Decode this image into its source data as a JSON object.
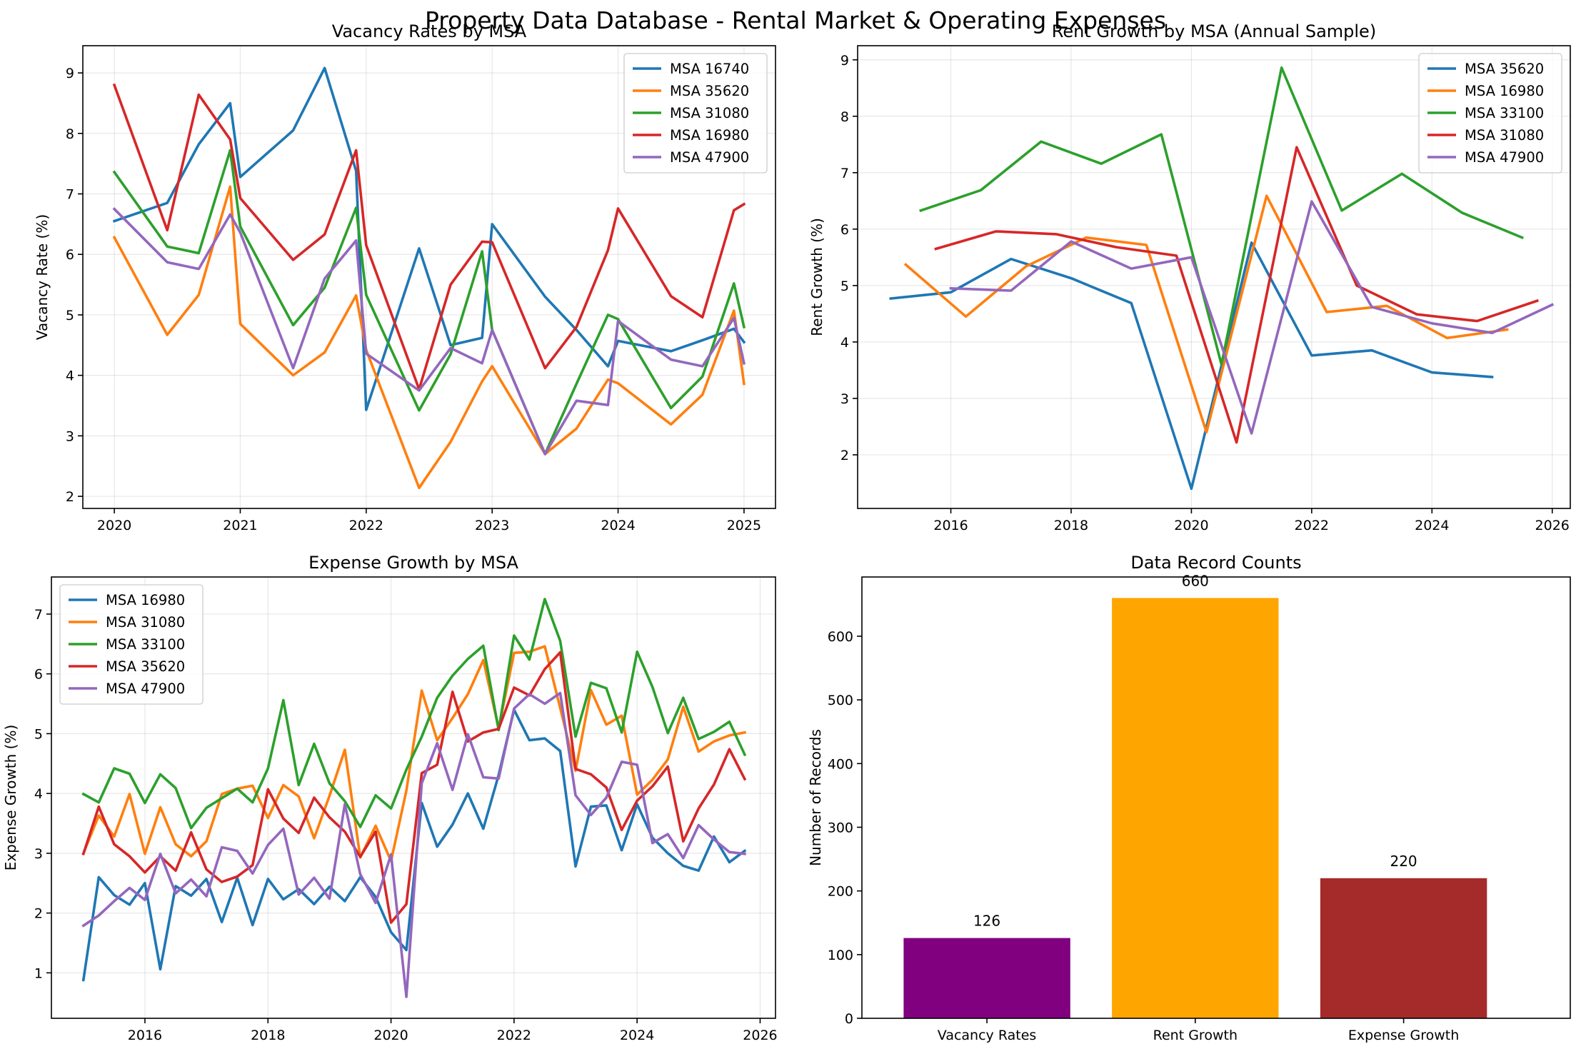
{
  "figure": {
    "title": "Property Data Database - Rental Market & Operating Expenses"
  },
  "chart_data": [
    {
      "id": "vacancy",
      "type": "line",
      "title": "Vacancy Rates by MSA",
      "xlabel": "",
      "ylabel": "Vacancy Rate (%)",
      "xlim": [
        2019.75,
        2025.25
      ],
      "ylim": [
        1.8,
        9.45
      ],
      "xticks": [
        2020,
        2021,
        2022,
        2023,
        2024,
        2025
      ],
      "yticks": [
        2,
        3,
        4,
        5,
        6,
        7,
        8,
        9
      ],
      "grid": true,
      "legend": "top-right",
      "series": [
        {
          "name": "MSA 16740",
          "color": "#1f77b4",
          "x": [
            2020.0,
            2020.42,
            2020.67,
            2020.92,
            2021.0,
            2021.42,
            2021.67,
            2021.92,
            2022.0,
            2022.42,
            2022.67,
            2022.92,
            2023.0,
            2023.42,
            2023.67,
            2023.92,
            2024.0,
            2024.42,
            2024.67,
            2024.92,
            2025.0
          ],
          "y": [
            6.55,
            6.85,
            7.82,
            8.5,
            7.28,
            8.05,
            9.08,
            7.38,
            3.43,
            6.1,
            4.5,
            4.62,
            6.5,
            5.3,
            4.75,
            4.15,
            4.57,
            4.4,
            4.58,
            4.77,
            4.55
          ]
        },
        {
          "name": "MSA 35620",
          "color": "#ff7f0e",
          "x": [
            2020.0,
            2020.42,
            2020.67,
            2020.92,
            2021.0,
            2021.42,
            2021.67,
            2021.92,
            2022.0,
            2022.42,
            2022.67,
            2022.92,
            2023.0,
            2023.42,
            2023.67,
            2023.92,
            2024.0,
            2024.42,
            2024.67,
            2024.92,
            2025.0
          ],
          "y": [
            6.28,
            4.67,
            5.33,
            7.12,
            4.85,
            4.0,
            4.38,
            5.32,
            4.42,
            2.14,
            2.9,
            3.9,
            4.15,
            2.7,
            3.12,
            3.93,
            3.87,
            3.19,
            3.68,
            5.07,
            3.86
          ]
        },
        {
          "name": "MSA 31080",
          "color": "#2ca02c",
          "x": [
            2020.0,
            2020.42,
            2020.67,
            2020.92,
            2021.0,
            2021.42,
            2021.67,
            2021.92,
            2022.0,
            2022.42,
            2022.67,
            2022.92,
            2023.0,
            2023.42,
            2023.67,
            2023.92,
            2024.0,
            2024.42,
            2024.67,
            2024.92,
            2025.0
          ],
          "y": [
            7.36,
            6.13,
            6.02,
            7.72,
            6.46,
            4.83,
            5.45,
            6.77,
            5.33,
            3.42,
            4.35,
            6.05,
            4.75,
            2.7,
            3.86,
            5.0,
            4.93,
            3.46,
            3.98,
            5.52,
            4.8
          ]
        },
        {
          "name": "MSA 16980",
          "color": "#d62728",
          "x": [
            2020.0,
            2020.42,
            2020.67,
            2020.92,
            2021.0,
            2021.42,
            2021.67,
            2021.92,
            2022.0,
            2022.42,
            2022.67,
            2022.92,
            2023.0,
            2023.42,
            2023.67,
            2023.92,
            2024.0,
            2024.42,
            2024.67,
            2024.92,
            2025.0
          ],
          "y": [
            8.8,
            6.4,
            8.64,
            7.9,
            6.93,
            5.91,
            6.33,
            7.72,
            6.15,
            3.77,
            5.5,
            6.21,
            6.2,
            4.12,
            4.8,
            6.07,
            6.76,
            5.31,
            4.96,
            6.73,
            6.83
          ]
        },
        {
          "name": "MSA 47900",
          "color": "#9467bd",
          "x": [
            2020.0,
            2020.42,
            2020.67,
            2020.92,
            2021.0,
            2021.42,
            2021.67,
            2021.92,
            2022.0,
            2022.42,
            2022.67,
            2022.92,
            2023.0,
            2023.42,
            2023.67,
            2023.92,
            2024.0,
            2024.42,
            2024.67,
            2024.92,
            2025.0
          ],
          "y": [
            6.75,
            5.87,
            5.76,
            6.66,
            6.36,
            4.12,
            5.6,
            6.23,
            4.36,
            3.75,
            4.45,
            4.2,
            4.75,
            2.7,
            3.58,
            3.51,
            4.9,
            4.26,
            4.15,
            4.95,
            4.2
          ]
        }
      ]
    },
    {
      "id": "rent",
      "type": "line",
      "title": "Rent Growth by MSA (Annual Sample)",
      "xlabel": "",
      "ylabel": "Rent Growth (%)",
      "xlim": [
        2014.45,
        2026.3
      ],
      "ylim": [
        1.05,
        9.25
      ],
      "xticks": [
        2016,
        2018,
        2020,
        2022,
        2024,
        2026
      ],
      "yticks": [
        2,
        3,
        4,
        5,
        6,
        7,
        8,
        9
      ],
      "grid": true,
      "legend": "top-right",
      "series": [
        {
          "name": "MSA 35620",
          "color": "#1f77b4",
          "x": [
            2015.0,
            2016.0,
            2017.0,
            2018.0,
            2019.0,
            2020.0,
            2021.0,
            2022.0,
            2023.0,
            2024.0,
            2025.0
          ],
          "y": [
            4.77,
            4.88,
            5.47,
            5.13,
            4.69,
            1.4,
            5.76,
            3.76,
            3.85,
            3.46,
            3.38
          ]
        },
        {
          "name": "MSA 16980",
          "color": "#ff7f0e",
          "x": [
            2015.25,
            2016.25,
            2017.25,
            2018.25,
            2019.25,
            2020.25,
            2021.25,
            2022.25,
            2023.25,
            2024.25,
            2025.25
          ],
          "y": [
            5.37,
            4.45,
            5.34,
            5.85,
            5.72,
            2.4,
            6.59,
            4.53,
            4.64,
            4.07,
            4.22
          ]
        },
        {
          "name": "MSA 33100",
          "color": "#2ca02c",
          "x": [
            2015.5,
            2016.5,
            2017.5,
            2018.5,
            2019.5,
            2020.5,
            2021.5,
            2022.5,
            2023.5,
            2024.5,
            2025.5
          ],
          "y": [
            6.33,
            6.69,
            7.55,
            7.16,
            7.68,
            3.6,
            8.86,
            6.33,
            6.98,
            6.29,
            5.85
          ]
        },
        {
          "name": "MSA 31080",
          "color": "#d62728",
          "x": [
            2015.75,
            2016.75,
            2017.75,
            2018.75,
            2019.75,
            2020.75,
            2021.75,
            2022.75,
            2023.75,
            2024.75,
            2025.75
          ],
          "y": [
            5.65,
            5.96,
            5.91,
            5.68,
            5.53,
            2.22,
            7.45,
            5.0,
            4.49,
            4.37,
            4.73
          ]
        },
        {
          "name": "MSA 47900",
          "color": "#9467bd",
          "x": [
            2016.0,
            2017.0,
            2018.0,
            2019.0,
            2020.0,
            2021.0,
            2022.0,
            2023.0,
            2024.0,
            2025.0,
            2026.0
          ],
          "y": [
            4.95,
            4.91,
            5.78,
            5.3,
            5.5,
            2.38,
            6.49,
            4.62,
            4.33,
            4.16,
            4.66
          ]
        }
      ]
    },
    {
      "id": "expense",
      "type": "line",
      "title": "Expense Growth by MSA",
      "xlabel": "",
      "ylabel": "Expense Growth (%)",
      "xlim": [
        2014.48,
        2026.25
      ],
      "ylim": [
        0.24,
        7.62
      ],
      "xticks": [
        2016,
        2018,
        2020,
        2022,
        2024,
        2026
      ],
      "yticks": [
        1,
        2,
        3,
        4,
        5,
        6,
        7
      ],
      "grid": true,
      "legend": "top-left",
      "series": [
        {
          "name": "MSA 16980",
          "color": "#1f77b4",
          "x": [
            2015.0,
            2015.25,
            2015.5,
            2015.75,
            2016.0,
            2016.25,
            2016.5,
            2016.75,
            2017.0,
            2017.25,
            2017.5,
            2017.75,
            2018.0,
            2018.25,
            2018.5,
            2018.75,
            2019.0,
            2019.25,
            2019.5,
            2019.75,
            2020.0,
            2020.25,
            2020.5,
            2020.75,
            2021.0,
            2021.25,
            2021.5,
            2021.75,
            2022.0,
            2022.25,
            2022.5,
            2022.75,
            2023.0,
            2023.25,
            2023.5,
            2023.75,
            2024.0,
            2024.25,
            2024.5,
            2024.75,
            2025.0,
            2025.25,
            2025.5,
            2025.75
          ],
          "y": [
            0.88,
            2.6,
            2.3,
            2.14,
            2.5,
            1.06,
            2.45,
            2.29,
            2.57,
            1.85,
            2.59,
            1.8,
            2.57,
            2.23,
            2.4,
            2.15,
            2.44,
            2.2,
            2.6,
            2.27,
            1.68,
            1.38,
            3.84,
            3.11,
            3.48,
            4.0,
            3.41,
            4.31,
            5.4,
            4.89,
            4.92,
            4.71,
            2.78,
            3.78,
            3.8,
            3.05,
            3.82,
            3.26,
            3.0,
            2.79,
            2.71,
            3.28,
            2.85,
            3.04
          ]
        },
        {
          "name": "MSA 31080",
          "color": "#ff7f0e",
          "x": [
            2015.0,
            2015.25,
            2015.5,
            2015.75,
            2016.0,
            2016.25,
            2016.5,
            2016.75,
            2017.0,
            2017.25,
            2017.5,
            2017.75,
            2018.0,
            2018.25,
            2018.5,
            2018.75,
            2019.0,
            2019.25,
            2019.5,
            2019.75,
            2020.0,
            2020.25,
            2020.5,
            2020.75,
            2021.0,
            2021.25,
            2021.5,
            2021.75,
            2022.0,
            2022.25,
            2022.5,
            2022.75,
            2023.0,
            2023.25,
            2023.5,
            2023.75,
            2024.0,
            2024.25,
            2024.5,
            2024.75,
            2025.0,
            2025.25,
            2025.5,
            2025.75
          ],
          "y": [
            3.0,
            3.63,
            3.28,
            3.99,
            2.99,
            3.77,
            3.15,
            2.95,
            3.2,
            3.99,
            4.08,
            4.13,
            3.59,
            4.14,
            3.95,
            3.25,
            3.96,
            4.73,
            2.93,
            3.46,
            2.87,
            4.05,
            5.72,
            4.89,
            5.26,
            5.66,
            6.23,
            5.09,
            6.35,
            6.37,
            6.46,
            5.43,
            4.38,
            5.73,
            5.15,
            5.3,
            3.98,
            4.23,
            4.57,
            5.45,
            4.7,
            4.87,
            4.97,
            5.02
          ]
        },
        {
          "name": "MSA 33100",
          "color": "#2ca02c",
          "x": [
            2015.0,
            2015.25,
            2015.5,
            2015.75,
            2016.0,
            2016.25,
            2016.5,
            2016.75,
            2017.0,
            2017.25,
            2017.5,
            2017.75,
            2018.0,
            2018.25,
            2018.5,
            2018.75,
            2019.0,
            2019.25,
            2019.5,
            2019.75,
            2020.0,
            2020.25,
            2020.5,
            2020.75,
            2021.0,
            2021.25,
            2021.5,
            2021.75,
            2022.0,
            2022.25,
            2022.5,
            2022.75,
            2023.0,
            2023.25,
            2023.5,
            2023.75,
            2024.0,
            2024.25,
            2024.5,
            2024.75,
            2025.0,
            2025.25,
            2025.5,
            2025.75
          ],
          "y": [
            3.99,
            3.85,
            4.42,
            4.33,
            3.84,
            4.32,
            4.09,
            3.42,
            3.76,
            3.92,
            4.08,
            3.85,
            4.42,
            5.56,
            4.14,
            4.83,
            4.17,
            3.87,
            3.44,
            3.97,
            3.75,
            4.4,
            4.95,
            5.6,
            5.97,
            6.25,
            6.47,
            5.06,
            6.64,
            6.24,
            7.25,
            6.55,
            4.95,
            5.85,
            5.76,
            5.02,
            6.37,
            5.78,
            5.01,
            5.6,
            4.91,
            5.03,
            5.2,
            4.65
          ]
        },
        {
          "name": "MSA 35620",
          "color": "#d62728",
          "x": [
            2015.0,
            2015.25,
            2015.5,
            2015.75,
            2016.0,
            2016.25,
            2016.5,
            2016.75,
            2017.0,
            2017.25,
            2017.5,
            2017.75,
            2018.0,
            2018.25,
            2018.5,
            2018.75,
            2019.0,
            2019.25,
            2019.5,
            2019.75,
            2020.0,
            2020.25,
            2020.5,
            2020.75,
            2021.0,
            2021.25,
            2021.5,
            2021.75,
            2022.0,
            2022.25,
            2022.5,
            2022.75,
            2023.0,
            2023.25,
            2023.5,
            2023.75,
            2024.0,
            2024.25,
            2024.5,
            2024.75,
            2025.0,
            2025.25,
            2025.5,
            2025.75
          ],
          "y": [
            2.99,
            3.78,
            3.15,
            2.95,
            2.68,
            2.95,
            2.71,
            3.35,
            2.73,
            2.52,
            2.61,
            2.8,
            4.07,
            3.58,
            3.34,
            3.93,
            3.6,
            3.36,
            2.94,
            3.36,
            1.84,
            2.15,
            4.34,
            4.48,
            5.7,
            4.87,
            5.02,
            5.08,
            5.77,
            5.64,
            6.08,
            6.36,
            4.41,
            4.32,
            4.1,
            3.39,
            3.88,
            4.12,
            4.45,
            3.2,
            3.75,
            4.15,
            4.74,
            4.24
          ]
        },
        {
          "name": "MSA 47900",
          "color": "#9467bd",
          "x": [
            2015.0,
            2015.25,
            2015.5,
            2015.75,
            2016.0,
            2016.25,
            2016.5,
            2016.75,
            2017.0,
            2017.25,
            2017.5,
            2017.75,
            2018.0,
            2018.25,
            2018.5,
            2018.75,
            2019.0,
            2019.25,
            2019.5,
            2019.75,
            2020.0,
            2020.25,
            2020.5,
            2020.75,
            2021.0,
            2021.25,
            2021.5,
            2021.75,
            2022.0,
            2022.25,
            2022.5,
            2022.75,
            2023.0,
            2023.25,
            2023.5,
            2023.75,
            2024.0,
            2024.25,
            2024.5,
            2024.75,
            2025.0,
            2025.25,
            2025.5,
            2025.75
          ],
          "y": [
            1.79,
            1.96,
            2.2,
            2.42,
            2.22,
            2.99,
            2.33,
            2.56,
            2.28,
            3.1,
            3.04,
            2.66,
            3.14,
            3.41,
            2.31,
            2.59,
            2.24,
            3.82,
            2.65,
            2.17,
            2.98,
            0.6,
            4.17,
            4.84,
            4.06,
            4.99,
            4.27,
            4.25,
            5.42,
            5.66,
            5.5,
            5.68,
            3.97,
            3.64,
            3.93,
            4.53,
            4.48,
            3.17,
            3.32,
            2.92,
            3.47,
            3.23,
            3.02,
            2.99
          ]
        }
      ]
    },
    {
      "id": "records",
      "type": "bar",
      "title": "Data Record Counts",
      "xlabel": "",
      "ylabel": "Number of Records",
      "ylim": [
        0,
        693
      ],
      "yticks": [
        0,
        100,
        200,
        300,
        400,
        500,
        600
      ],
      "grid": false,
      "categories": [
        "Vacancy Rates",
        "Rent Growth",
        "Expense Growth"
      ],
      "values": [
        126,
        660,
        220
      ],
      "colors": [
        "#800080",
        "#ffa500",
        "#a52a2a"
      ]
    }
  ]
}
